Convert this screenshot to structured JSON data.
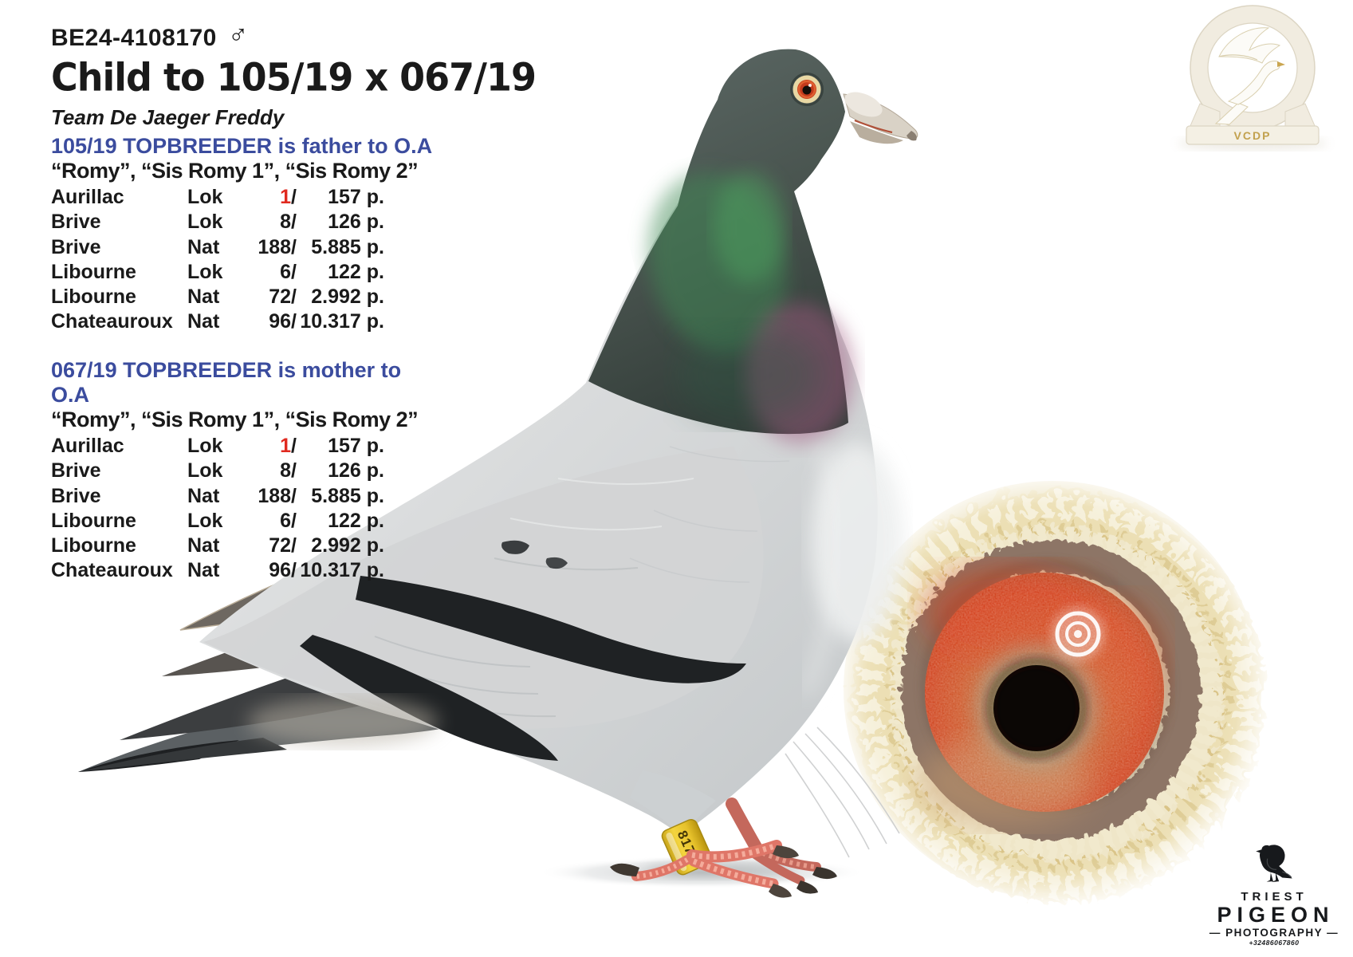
{
  "header": {
    "ring_number": "BE24-4108170",
    "sex_symbol": "♂",
    "title": "Child to 105/19 x 067/19",
    "team": "Team De Jaeger Freddy"
  },
  "result_blocks": [
    {
      "heading": "105/19 TOPBREEDER is father to O.A",
      "names": "“Romy”, “Sis Romy 1”, “Sis Romy 2”",
      "rows": [
        {
          "place": "Aurillac",
          "code": "Lok",
          "count": "1",
          "count_red": true,
          "pts": "157 p."
        },
        {
          "place": "Brive",
          "code": "Lok",
          "count": "8",
          "count_red": false,
          "pts": "126 p."
        },
        {
          "place": "Brive",
          "code": "Nat",
          "count": "188",
          "count_red": false,
          "pts": "5.885 p."
        },
        {
          "place": "Libourne",
          "code": "Lok",
          "count": "6",
          "count_red": false,
          "pts": "122 p."
        },
        {
          "place": "Libourne",
          "code": "Nat",
          "count": "72",
          "count_red": false,
          "pts": "2.992 p."
        },
        {
          "place": "Chateauroux",
          "code": "Nat",
          "count": "96",
          "count_red": false,
          "pts": "10.317 p."
        }
      ]
    },
    {
      "heading": "067/19 TOPBREEDER is mother to O.A",
      "names": "“Romy”, “Sis Romy 1”, “Sis Romy 2”",
      "rows": [
        {
          "place": "Aurillac",
          "code": "Lok",
          "count": "1",
          "count_red": true,
          "pts": "157 p."
        },
        {
          "place": "Brive",
          "code": "Lok",
          "count": "8",
          "count_red": false,
          "pts": "126 p."
        },
        {
          "place": "Brive",
          "code": "Nat",
          "count": "188",
          "count_red": false,
          "pts": "5.885 p."
        },
        {
          "place": "Libourne",
          "code": "Lok",
          "count": "6",
          "count_red": false,
          "pts": "122 p."
        },
        {
          "place": "Libourne",
          "code": "Nat",
          "count": "72",
          "count_red": false,
          "pts": "2.992 p."
        },
        {
          "place": "Chateauroux",
          "code": "Nat",
          "count": "96",
          "count_red": false,
          "pts": "10.317 p."
        }
      ]
    }
  ],
  "photo": {
    "subject": "racing pigeon standing, side view facing right",
    "eye_closeup": "pigeon eye close-up, red-orange iris",
    "leg_ring_number": "8170"
  },
  "logos": {
    "vcdp": {
      "label": "VCDP"
    },
    "triest": {
      "brand_top": "TRIEST",
      "brand_main": "PIGEON",
      "brand_sub": "— PHOTOGRAPHY —",
      "phone": "+32486067860"
    }
  },
  "colors": {
    "heading_blue": "#3b4c9e",
    "highlight_red": "#e02a20",
    "ring_yellow": "#ecca2e",
    "iris_red": "#cf3f1a"
  }
}
